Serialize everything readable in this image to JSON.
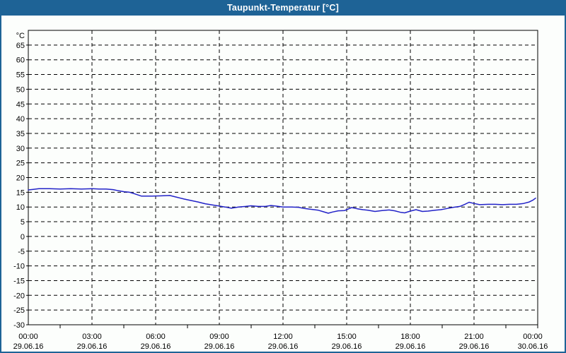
{
  "window": {
    "title": "Taupunkt-Temperatur [°C]",
    "titlebar_color": "#1e6396",
    "border_color": "#1e6396",
    "background_color": "#fcfefc"
  },
  "chart_data": {
    "type": "line",
    "title": "Taupunkt-Temperatur [°C]",
    "xlabel": "",
    "ylabel": "°C",
    "ylim": [
      -30,
      70
    ],
    "ytick_step": 5,
    "yticks": [
      -30,
      -25,
      -20,
      -15,
      -10,
      -5,
      0,
      5,
      10,
      15,
      20,
      25,
      30,
      35,
      40,
      45,
      50,
      55,
      60,
      65
    ],
    "xlim_hours": [
      0,
      24
    ],
    "xtick_step_hours": 3,
    "xticks": [
      {
        "time": "00:00",
        "date": "29.06.16"
      },
      {
        "time": "03:00",
        "date": "29.06.16"
      },
      {
        "time": "06:00",
        "date": "29.06.16"
      },
      {
        "time": "09:00",
        "date": "29.06.16"
      },
      {
        "time": "12:00",
        "date": "29.06.16"
      },
      {
        "time": "15:00",
        "date": "29.06.16"
      },
      {
        "time": "18:00",
        "date": "29.06.16"
      },
      {
        "time": "21:00",
        "date": "29.06.16"
      },
      {
        "time": "00:00",
        "date": "30.06.16"
      }
    ],
    "grid": "dashed-black",
    "legend_position": "none",
    "axis_color": "#000000",
    "series": [
      {
        "name": "Taupunkt-Temperatur",
        "color": "#2222c8",
        "x_hours": [
          0,
          0.233,
          0.5,
          1.0,
          1.5,
          2.0,
          2.5,
          3.0,
          3.333,
          3.667,
          4.0,
          4.267,
          4.5,
          4.767,
          5.0,
          5.333,
          5.833,
          6.267,
          6.667,
          7.0,
          7.333,
          7.667,
          8.0,
          8.333,
          8.667,
          9.0,
          9.267,
          9.567,
          9.9,
          10.233,
          10.5,
          10.833,
          11.167,
          11.433,
          11.667,
          12.0,
          12.4,
          12.733,
          13.0,
          13.333,
          13.667,
          13.9,
          14.133,
          14.333,
          14.6,
          14.9,
          15.233,
          15.5,
          15.767,
          16.0,
          16.333,
          16.667,
          17.0,
          17.267,
          17.533,
          17.733,
          18.0,
          18.267,
          18.567,
          18.833,
          19.167,
          19.433,
          19.733,
          20.033,
          20.333,
          20.567,
          20.767,
          21.0,
          21.267,
          21.667,
          22.0,
          22.333,
          22.667,
          23.0,
          23.333,
          23.6,
          23.767,
          23.9
        ],
        "values": [
          15.8,
          16.0,
          16.2,
          16.2,
          16.1,
          16.2,
          16.1,
          16.2,
          16.1,
          16.1,
          15.9,
          15.5,
          15.2,
          15.0,
          14.5,
          13.7,
          13.7,
          13.8,
          13.9,
          13.3,
          12.7,
          12.2,
          11.7,
          11.1,
          10.7,
          10.3,
          10.0,
          9.6,
          10.0,
          10.2,
          10.4,
          10.2,
          10.2,
          10.5,
          10.3,
          10.0,
          10.0,
          9.9,
          9.5,
          9.2,
          8.9,
          8.4,
          7.9,
          8.3,
          8.7,
          8.8,
          9.8,
          9.4,
          9.1,
          8.9,
          8.5,
          8.8,
          9.0,
          8.7,
          8.2,
          8.0,
          8.6,
          9.1,
          8.5,
          8.6,
          8.9,
          9.1,
          9.5,
          9.9,
          10.2,
          10.9,
          11.6,
          11.2,
          10.8,
          10.9,
          10.9,
          10.8,
          10.9,
          10.9,
          11.2,
          11.7,
          12.3,
          13.0
        ]
      }
    ]
  }
}
